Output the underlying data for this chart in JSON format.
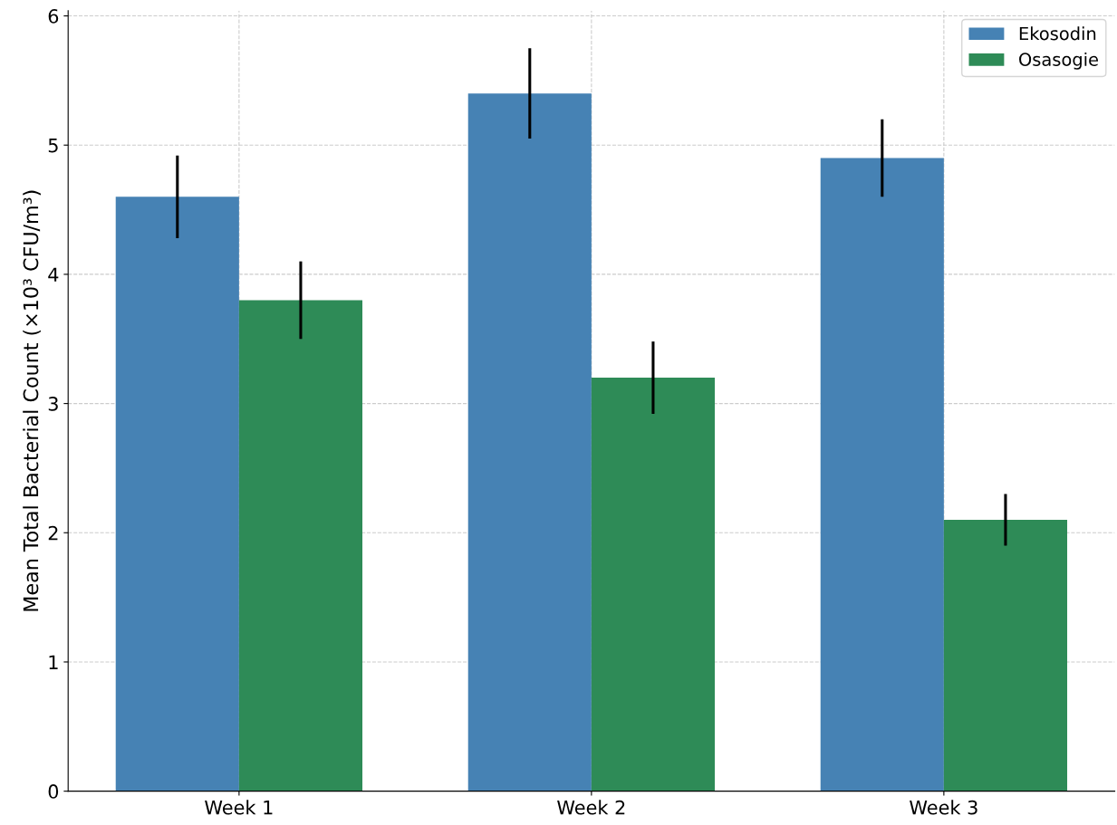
{
  "chart_data": {
    "type": "bar",
    "ylabel": "Mean Total Bacterial Count (×10³ CFU/m³)",
    "categories": [
      "Week 1",
      "Week 2",
      "Week 3"
    ],
    "series": [
      {
        "name": "Ekosodin",
        "color": "#4682b4",
        "values": [
          4.6,
          5.4,
          4.9
        ],
        "errors": [
          0.32,
          0.35,
          0.3
        ]
      },
      {
        "name": "Osasogie",
        "color": "#2e8b57",
        "values": [
          3.8,
          3.2,
          2.1
        ],
        "errors": [
          0.3,
          0.28,
          0.2
        ]
      }
    ],
    "ylim": [
      0,
      6.04
    ],
    "yticks": [
      0,
      1,
      2,
      3,
      4,
      5,
      6
    ],
    "grid": true,
    "legend": "top right"
  }
}
